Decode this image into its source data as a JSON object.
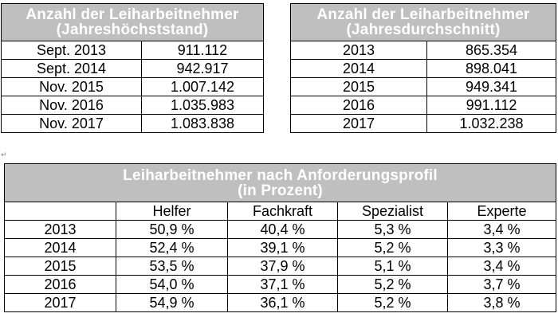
{
  "table_peak": {
    "title_line1": "Anzahl der Leiharbeitnehmer",
    "title_line2": "(Jahreshöchststand)",
    "rows": [
      {
        "period": "Sept. 2013",
        "value": "911.112"
      },
      {
        "period": "Sept. 2014",
        "value": "942.917"
      },
      {
        "period": "Nov. 2015",
        "value": "1.007.142"
      },
      {
        "period": "Nov. 2016",
        "value": "1.035.983"
      },
      {
        "period": "Nov. 2017",
        "value": "1.083.838"
      }
    ]
  },
  "table_avg": {
    "title_line1": "Anzahl der Leiharbeitnehmer",
    "title_line2": "(Jahresdurchschnitt)",
    "rows": [
      {
        "year": "2013",
        "value": "865.354"
      },
      {
        "year": "2014",
        "value": "898.041"
      },
      {
        "year": "2015",
        "value": "949.341"
      },
      {
        "year": "2016",
        "value": "991.112"
      },
      {
        "year": "2017",
        "value": "1.032.238"
      }
    ]
  },
  "paragraph_mark": "↵",
  "table_profile": {
    "title_line1": "Leiharbeitnehmer nach Anforderungsprofil",
    "title_line2": "(in Prozent)",
    "columns": [
      "",
      "Helfer",
      "Fachkraft",
      "Spezialist",
      "Experte"
    ],
    "rows": [
      {
        "year": "2013",
        "helfer": "50,9 %",
        "fachkraft": "40,4 %",
        "spezialist": "5,3 %",
        "experte": "3,4 %"
      },
      {
        "year": "2014",
        "helfer": "52,4 %",
        "fachkraft": "39,1 %",
        "spezialist": "5,2 %",
        "experte": "3,3 %"
      },
      {
        "year": "2015",
        "helfer": "53,5 %",
        "fachkraft": "37,9 %",
        "spezialist": "5,1 %",
        "experte": "3,4 %"
      },
      {
        "year": "2016",
        "helfer": "54,0 %",
        "fachkraft": "37,1 %",
        "spezialist": "5,2 %",
        "experte": "3,7 %"
      },
      {
        "year": "2017",
        "helfer": "54,9 %",
        "fachkraft": "36,1 %",
        "spezialist": "5,2 %",
        "experte": "3,8 %"
      }
    ]
  },
  "colors": {
    "header_bg": "#bfbfbf",
    "header_text": "#ffffff",
    "border": "#000000"
  }
}
